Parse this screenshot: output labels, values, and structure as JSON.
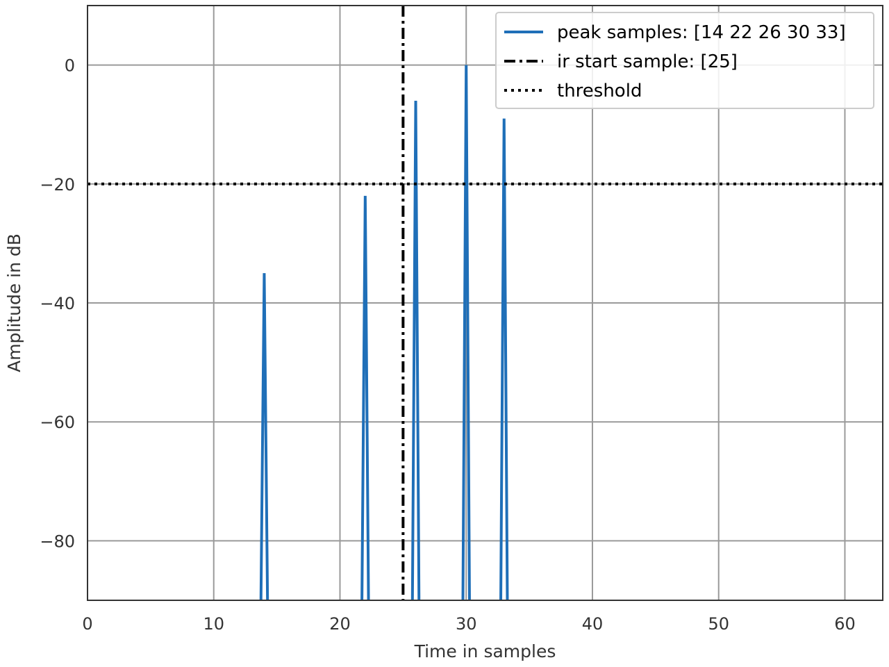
{
  "chart_data": {
    "type": "line",
    "title": "",
    "xlabel": "Time in samples",
    "ylabel": "Amplitude in dB",
    "xlim": [
      0,
      63
    ],
    "ylim": [
      -90,
      10
    ],
    "x_ticks": [
      0,
      10,
      20,
      30,
      40,
      50,
      60
    ],
    "y_ticks": [
      0,
      -20,
      -40,
      -60,
      -80
    ],
    "x_tick_labels": [
      "0",
      "10",
      "20",
      "30",
      "40",
      "50",
      "60"
    ],
    "y_tick_labels": [
      "0",
      "−20",
      "−40",
      "−60",
      "−80"
    ],
    "grid": true,
    "legend_position": "top-right",
    "series": [
      {
        "name": "peak samples: [14 22 26 30 33]",
        "kind": "line",
        "style": "solid",
        "color": "#1f6fb8",
        "peaks": [
          {
            "x": 14,
            "y": -35
          },
          {
            "x": 22,
            "y": -22
          },
          {
            "x": 26,
            "y": -6
          },
          {
            "x": 30,
            "y": 0
          },
          {
            "x": 33,
            "y": -9
          }
        ],
        "floor": -90
      },
      {
        "name": "ir start sample: [25]",
        "kind": "vline",
        "style": "dashdot",
        "color": "#000000",
        "x": 25
      },
      {
        "name": "threshold",
        "kind": "hline",
        "style": "dotted",
        "color": "#000000",
        "y": -20
      }
    ]
  }
}
